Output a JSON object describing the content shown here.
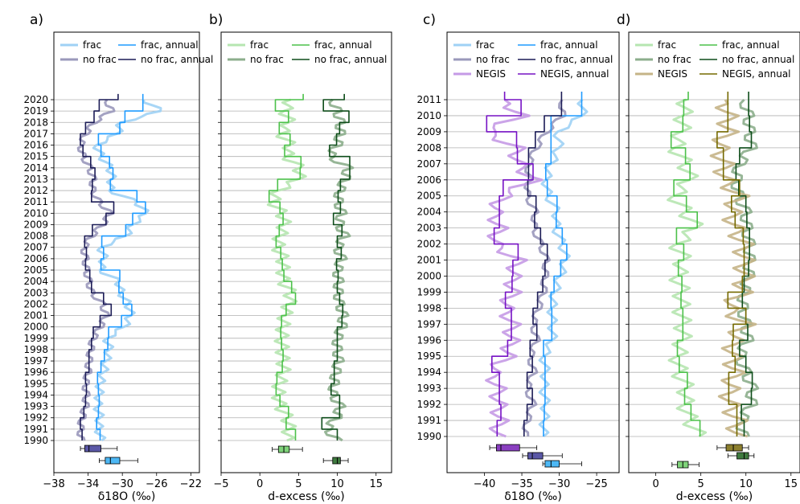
{
  "chart_data": [
    {
      "panel_label": "a)",
      "type": "line",
      "xlabel": "δ18O (‰)",
      "xlim": [
        -38,
        -21
      ],
      "xticks": [
        -38,
        -34,
        -30,
        -26,
        -22
      ],
      "years": [
        1990,
        1991,
        1992,
        1993,
        1994,
        1995,
        1996,
        1997,
        1998,
        1999,
        2000,
        2001,
        2002,
        2003,
        2004,
        2005,
        2006,
        2007,
        2008,
        2009,
        2010,
        2011,
        2012,
        2013,
        2014,
        2015,
        2016,
        2017,
        2018,
        2019,
        2020
      ],
      "legend": [
        {
          "name": "frac",
          "color": "#9fd1f5",
          "width": 3
        },
        {
          "name": "frac, annual",
          "color": "#1f9bff",
          "width": 1.6
        },
        {
          "name": "no frac",
          "color": "#9a98bb",
          "width": 3
        },
        {
          "name": "no frac, annual",
          "color": "#1c1c56",
          "width": 1.6
        }
      ],
      "series": [
        {
          "name": "frac",
          "color": "#9fd1f5",
          "width": 3,
          "alpha": 0.9,
          "amp": 0.9,
          "values": [
            -32.4,
            -32.8,
            -32.6,
            -32.9,
            -32.7,
            -32.6,
            -32.2,
            -31.9,
            -31.5,
            -31.8,
            -29.8,
            -29.0,
            -29.3,
            -30.2,
            -30.4,
            -32.6,
            -32.1,
            -32.5,
            -29.6,
            -28.8,
            -27.2,
            -28.3,
            -31.5,
            -31.2,
            -31.4,
            -32.5,
            -33.0,
            -30.6,
            -30.1,
            -25.5,
            -27.5
          ]
        },
        {
          "name": "no frac",
          "color": "#9a98bb",
          "width": 3,
          "alpha": 0.9,
          "amp": 0.9,
          "values": [
            -34.8,
            -34.9,
            -34.7,
            -34.3,
            -34.2,
            -34.3,
            -34.0,
            -33.9,
            -33.7,
            -33.4,
            -32.6,
            -31.9,
            -32.3,
            -33.6,
            -33.9,
            -34.2,
            -34.3,
            -34.5,
            -33.6,
            -32.3,
            -31.4,
            -32.7,
            -33.5,
            -33.4,
            -33.8,
            -34.6,
            -34.9,
            -34.3,
            -33.3,
            -31.3,
            -31.8
          ]
        },
        {
          "name": "frac, annual",
          "color": "#1f9bff",
          "width": 1.6,
          "alpha": 1,
          "amp": 0,
          "values": [
            -32.6,
            -33.0,
            -32.8,
            -32.7,
            -32.8,
            -32.9,
            -32.5,
            -32.1,
            -31.7,
            -31.6,
            -30.1,
            -28.9,
            -29.9,
            -30.4,
            -30.3,
            -32.5,
            -32.2,
            -32.4,
            -29.6,
            -28.8,
            -27.3,
            -28.3,
            -31.4,
            -31.1,
            -31.5,
            -32.5,
            -32.8,
            -30.3,
            -29.7,
            -27.6,
            -27.6
          ]
        },
        {
          "name": "no frac, annual",
          "color": "#1c1c56",
          "width": 1.6,
          "alpha": 1,
          "amp": 0,
          "values": [
            -34.7,
            -34.9,
            -34.5,
            -34.3,
            -34.2,
            -34.3,
            -33.9,
            -33.9,
            -33.6,
            -33.4,
            -32.6,
            -31.3,
            -32.2,
            -33.6,
            -33.8,
            -34.3,
            -34.2,
            -34.4,
            -33.5,
            -31.9,
            -31.0,
            -33.6,
            -33.5,
            -33.2,
            -33.7,
            -34.6,
            -34.9,
            -34.3,
            -33.3,
            -32.7,
            -30.5
          ]
        }
      ],
      "boxes": [
        {
          "color": "#5a57a6",
          "min": -34.9,
          "q1": -34.4,
          "median": -33.9,
          "q3": -32.5,
          "max": -30.6
        },
        {
          "color": "#4db8f5",
          "min": -32.7,
          "q1": -32.0,
          "median": -31.4,
          "q3": -30.3,
          "max": -28.2
        }
      ]
    },
    {
      "panel_label": "b)",
      "type": "line",
      "xlabel": "d-excess (‰)",
      "xlim": [
        -5,
        17
      ],
      "xticks": [
        -5,
        0,
        5,
        10,
        15
      ],
      "years": [
        1990,
        1991,
        1992,
        1993,
        1994,
        1995,
        1996,
        1997,
        1998,
        1999,
        2000,
        2001,
        2002,
        2003,
        2004,
        2005,
        2006,
        2007,
        2008,
        2009,
        2010,
        2011,
        2012,
        2013,
        2014,
        2015,
        2016,
        2017,
        2018,
        2019,
        2020
      ],
      "legend": [
        {
          "name": "frac",
          "color": "#b6e6b0",
          "width": 3
        },
        {
          "name": "frac, annual",
          "color": "#4cc14a",
          "width": 1.6
        },
        {
          "name": "no frac",
          "color": "#8cae8c",
          "width": 3
        },
        {
          "name": "no frac, annual",
          "color": "#0e4d1a",
          "width": 1.6
        }
      ],
      "series": [
        {
          "name": "frac",
          "color": "#b6e6b0",
          "width": 3,
          "alpha": 0.9,
          "amp": 1.6,
          "values": [
            3.5,
            3.8,
            3.6,
            2.6,
            2.4,
            2.5,
            3.1,
            3.0,
            2.9,
            2.8,
            3.0,
            3.2,
            3.8,
            4.0,
            3.0,
            3.0,
            3.0,
            2.3,
            2.6,
            3.2,
            2.9,
            1.6,
            2.4,
            5.0,
            5.2,
            3.4,
            4.0,
            2.7,
            3.8,
            3.2,
            4.0
          ]
        },
        {
          "name": "no frac",
          "color": "#8cae8c",
          "width": 3,
          "alpha": 0.9,
          "amp": 1.5,
          "values": [
            10.0,
            8.6,
            9.9,
            10.4,
            9.4,
            9.6,
            9.8,
            10.2,
            10.0,
            10.0,
            10.6,
            10.8,
            10.3,
            10.1,
            10.2,
            10.0,
            10.6,
            10.0,
            11.0,
            10.2,
            10.6,
            10.1,
            10.3,
            11.0,
            11.4,
            9.0,
            10.0,
            10.4,
            10.4,
            10.0,
            9.4
          ]
        },
        {
          "name": "frac, annual",
          "color": "#4cc14a",
          "width": 1.6,
          "alpha": 1,
          "amp": 0,
          "values": [
            4.6,
            3.4,
            3.7,
            2.6,
            2.1,
            2.2,
            2.9,
            3.0,
            2.8,
            2.7,
            2.8,
            3.4,
            4.6,
            4.1,
            3.1,
            2.9,
            2.7,
            2.1,
            2.5,
            3.0,
            2.6,
            1.2,
            2.3,
            5.2,
            5.3,
            3.2,
            3.9,
            2.5,
            3.7,
            2.0,
            5.6
          ]
        },
        {
          "name": "no frac, annual",
          "color": "#0e4d1a",
          "width": 1.6,
          "alpha": 1,
          "amp": 0,
          "values": [
            10.0,
            8.0,
            10.3,
            10.3,
            9.2,
            9.6,
            9.6,
            10.0,
            10.0,
            10.0,
            10.6,
            10.7,
            10.3,
            10.0,
            10.1,
            9.9,
            10.5,
            10.0,
            10.6,
            9.5,
            10.4,
            10.1,
            10.4,
            11.6,
            11.6,
            9.0,
            9.9,
            10.3,
            11.5,
            8.2,
            10.9
          ]
        }
      ],
      "boxes": [
        {
          "color": "#7fd37a",
          "min": 1.6,
          "q1": 2.4,
          "median": 3.1,
          "q3": 3.8,
          "max": 5.5
        },
        {
          "color": "#3f7a3f",
          "min": 8.2,
          "q1": 9.4,
          "median": 10.0,
          "q3": 10.4,
          "max": 11.4
        }
      ]
    },
    {
      "panel_label": "c)",
      "type": "line",
      "xlabel": "δ18O (‰)",
      "xlim": [
        -45,
        -22
      ],
      "xticks": [
        -40,
        -35,
        -30,
        -25
      ],
      "years": [
        1990,
        1991,
        1992,
        1993,
        1994,
        1995,
        1996,
        1997,
        1998,
        1999,
        2000,
        2001,
        2002,
        2003,
        2004,
        2005,
        2006,
        2007,
        2008,
        2009,
        2010,
        2011
      ],
      "legend": [
        {
          "name": "frac",
          "color": "#9fd1f5",
          "width": 3
        },
        {
          "name": "frac, annual",
          "color": "#1f9bff",
          "width": 1.6
        },
        {
          "name": "no frac",
          "color": "#9a98bb",
          "width": 3
        },
        {
          "name": "no frac, annual",
          "color": "#1c1c56",
          "width": 1.6
        },
        {
          "name": "NEGIS",
          "color": "#c59ae6",
          "width": 3
        },
        {
          "name": "NEGIS, annual",
          "color": "#7612c4",
          "width": 1.6
        }
      ],
      "series": [
        {
          "name": "frac",
          "color": "#9fd1f5",
          "width": 3,
          "alpha": 0.9,
          "amp": 1.1,
          "values": [
            -32.1,
            -32.0,
            -31.8,
            -32.1,
            -31.8,
            -32.1,
            -30.9,
            -30.9,
            -31.0,
            -30.6,
            -29.9,
            -29.1,
            -29.6,
            -30.5,
            -30.3,
            -31.5,
            -31.8,
            -31.1,
            -30.0,
            -30.2,
            -26.9,
            -26.9
          ]
        },
        {
          "name": "no frac",
          "color": "#9a98bb",
          "width": 3,
          "alpha": 0.9,
          "amp": 1.0,
          "values": [
            -34.6,
            -34.3,
            -33.5,
            -34.3,
            -33.4,
            -33.9,
            -33.0,
            -33.5,
            -32.8,
            -32.1,
            -31.9,
            -31.7,
            -32.5,
            -33.4,
            -33.2,
            -34.3,
            -34.1,
            -34.1,
            -33.1,
            -31.7,
            -29.6,
            -29.6
          ]
        },
        {
          "name": "NEGIS",
          "color": "#c59ae6",
          "width": 3,
          "alpha": 0.9,
          "amp": 2.2,
          "values": [
            -38.3,
            -37.9,
            -38.1,
            -38.2,
            -39.0,
            -36.9,
            -36.4,
            -36.3,
            -37.2,
            -36.2,
            -36.2,
            -35.5,
            -38.7,
            -38.0,
            -38.7,
            -37.5,
            -33.5,
            -35.5,
            -35.7,
            -39.7,
            -35.2,
            -37.3
          ]
        },
        {
          "name": "frac, annual",
          "color": "#1f9bff",
          "width": 1.6,
          "alpha": 1,
          "amp": 0,
          "values": [
            -32.1,
            -32.0,
            -31.9,
            -31.9,
            -31.9,
            -32.1,
            -31.0,
            -31.0,
            -31.1,
            -30.7,
            -29.8,
            -29.0,
            -29.6,
            -30.4,
            -30.3,
            -31.6,
            -31.8,
            -31.1,
            -31.1,
            -31.1,
            -27.0,
            -27.0
          ]
        },
        {
          "name": "no frac, annual",
          "color": "#1c1c56",
          "width": 1.6,
          "alpha": 1,
          "amp": 0,
          "values": [
            -34.7,
            -34.3,
            -33.6,
            -34.3,
            -33.6,
            -33.9,
            -33.0,
            -33.5,
            -32.9,
            -32.2,
            -31.9,
            -31.6,
            -32.5,
            -33.3,
            -33.1,
            -34.2,
            -34.1,
            -34.1,
            -33.2,
            -32.0,
            -29.7,
            -29.7
          ]
        },
        {
          "name": "NEGIS, annual",
          "color": "#7612c4",
          "width": 1.6,
          "alpha": 1,
          "amp": 0,
          "values": [
            -38.3,
            -37.8,
            -38.0,
            -38.0,
            -39.0,
            -36.9,
            -36.4,
            -36.4,
            -37.2,
            -36.3,
            -36.2,
            -35.5,
            -38.7,
            -38.0,
            -38.0,
            -37.5,
            -33.5,
            -35.6,
            -35.7,
            -39.7,
            -35.1,
            -37.3
          ]
        }
      ],
      "boxes": [
        {
          "color": "#8a3fc0",
          "min": -39.3,
          "q1": -38.4,
          "median": -37.8,
          "q3": -35.3,
          "max": -33.0
        },
        {
          "color": "#5a57a6",
          "min": -34.9,
          "q1": -34.2,
          "median": -33.6,
          "q3": -32.2,
          "max": -29.6
        },
        {
          "color": "#4db8f5",
          "min": -32.2,
          "q1": -31.9,
          "median": -31.1,
          "q3": -30.0,
          "max": -27.0
        }
      ]
    },
    {
      "panel_label": "d)",
      "type": "line",
      "xlabel": "d-excess (‰)",
      "xlim": [
        -3,
        16
      ],
      "xticks": [
        0,
        5,
        10,
        15
      ],
      "years": [
        1990,
        1991,
        1992,
        1993,
        1994,
        1995,
        1996,
        1997,
        1998,
        1999,
        2000,
        2001,
        2002,
        2003,
        2004,
        2005,
        2006,
        2007,
        2008,
        2009,
        2010,
        2011
      ],
      "legend": [
        {
          "name": "frac",
          "color": "#b6e6b0",
          "width": 3
        },
        {
          "name": "frac, annual",
          "color": "#4cc14a",
          "width": 1.6
        },
        {
          "name": "no frac",
          "color": "#8cae8c",
          "width": 3
        },
        {
          "name": "no frac, annual",
          "color": "#0e4d1a",
          "width": 1.6
        },
        {
          "name": "NEGIS",
          "color": "#c5b487",
          "width": 3
        },
        {
          "name": "NEGIS, annual",
          "color": "#756a00",
          "width": 1.6
        }
      ],
      "series": [
        {
          "name": "frac",
          "color": "#b6e6b0",
          "width": 3,
          "alpha": 0.9,
          "amp": 1.8,
          "values": [
            4.8,
            3.8,
            3.2,
            3.4,
            2.6,
            2.4,
            3.0,
            3.0,
            2.8,
            2.9,
            2.4,
            3.1,
            2.3,
            4.5,
            3.3,
            2.0,
            3.8,
            3.3,
            2.1,
            2.9,
            3.0,
            3.4
          ]
        },
        {
          "name": "no frac",
          "color": "#8cae8c",
          "width": 3,
          "alpha": 0.9,
          "amp": 1.5,
          "values": [
            9.7,
            9.5,
            10.6,
            10.7,
            10.0,
            9.3,
            10.2,
            10.0,
            9.6,
            9.8,
            10.3,
            10.4,
            10.4,
            10.1,
            10.0,
            9.2,
            8.9,
            9.3,
            10.6,
            10.4,
            10.3,
            9.8
          ]
        },
        {
          "name": "NEGIS",
          "color": "#c5b487",
          "width": 3,
          "alpha": 0.9,
          "amp": 2.2,
          "values": [
            9.0,
            9.0,
            8.2,
            8.2,
            8.8,
            8.5,
            8.6,
            9.9,
            8.0,
            9.6,
            9.8,
            9.8,
            9.7,
            8.8,
            8.4,
            9.2,
            7.6,
            7.6,
            7.0,
            8.0,
            8.0,
            7.7
          ]
        },
        {
          "name": "frac, annual",
          "color": "#4cc14a",
          "width": 1.6,
          "alpha": 1,
          "amp": 0,
          "values": [
            4.9,
            3.9,
            3.2,
            3.5,
            2.6,
            2.4,
            3.0,
            3.0,
            2.8,
            2.9,
            2.5,
            3.1,
            2.3,
            4.6,
            3.4,
            2.0,
            3.8,
            3.3,
            1.7,
            3.0,
            3.1,
            3.6
          ]
        },
        {
          "name": "no frac, annual",
          "color": "#0e4d1a",
          "width": 1.6,
          "alpha": 1,
          "amp": 0,
          "values": [
            9.8,
            9.5,
            10.6,
            10.7,
            10.0,
            9.3,
            10.2,
            10.0,
            9.6,
            9.8,
            10.3,
            10.4,
            10.4,
            10.1,
            10.0,
            9.2,
            8.9,
            9.3,
            10.6,
            10.4,
            10.3,
            10.3
          ]
        },
        {
          "name": "NEGIS, annual",
          "color": "#756a00",
          "width": 1.6,
          "alpha": 1,
          "amp": 0,
          "values": [
            9.0,
            9.0,
            8.1,
            8.1,
            8.8,
            8.5,
            8.6,
            10.0,
            8.0,
            9.6,
            9.8,
            9.8,
            9.7,
            8.8,
            8.4,
            9.3,
            7.5,
            7.5,
            6.8,
            8.0,
            8.0,
            8.0
          ]
        }
      ],
      "boxes": [
        {
          "color": "#8c7f2e",
          "min": 6.8,
          "q1": 7.8,
          "median": 8.6,
          "q3": 9.6,
          "max": 10.3
        },
        {
          "color": "#3f7a3f",
          "min": 8.0,
          "q1": 9.0,
          "median": 9.8,
          "q3": 10.3,
          "max": 10.9
        },
        {
          "color": "#7fd37a",
          "min": 1.8,
          "q1": 2.4,
          "median": 3.0,
          "q3": 3.6,
          "max": 4.8
        }
      ]
    }
  ]
}
